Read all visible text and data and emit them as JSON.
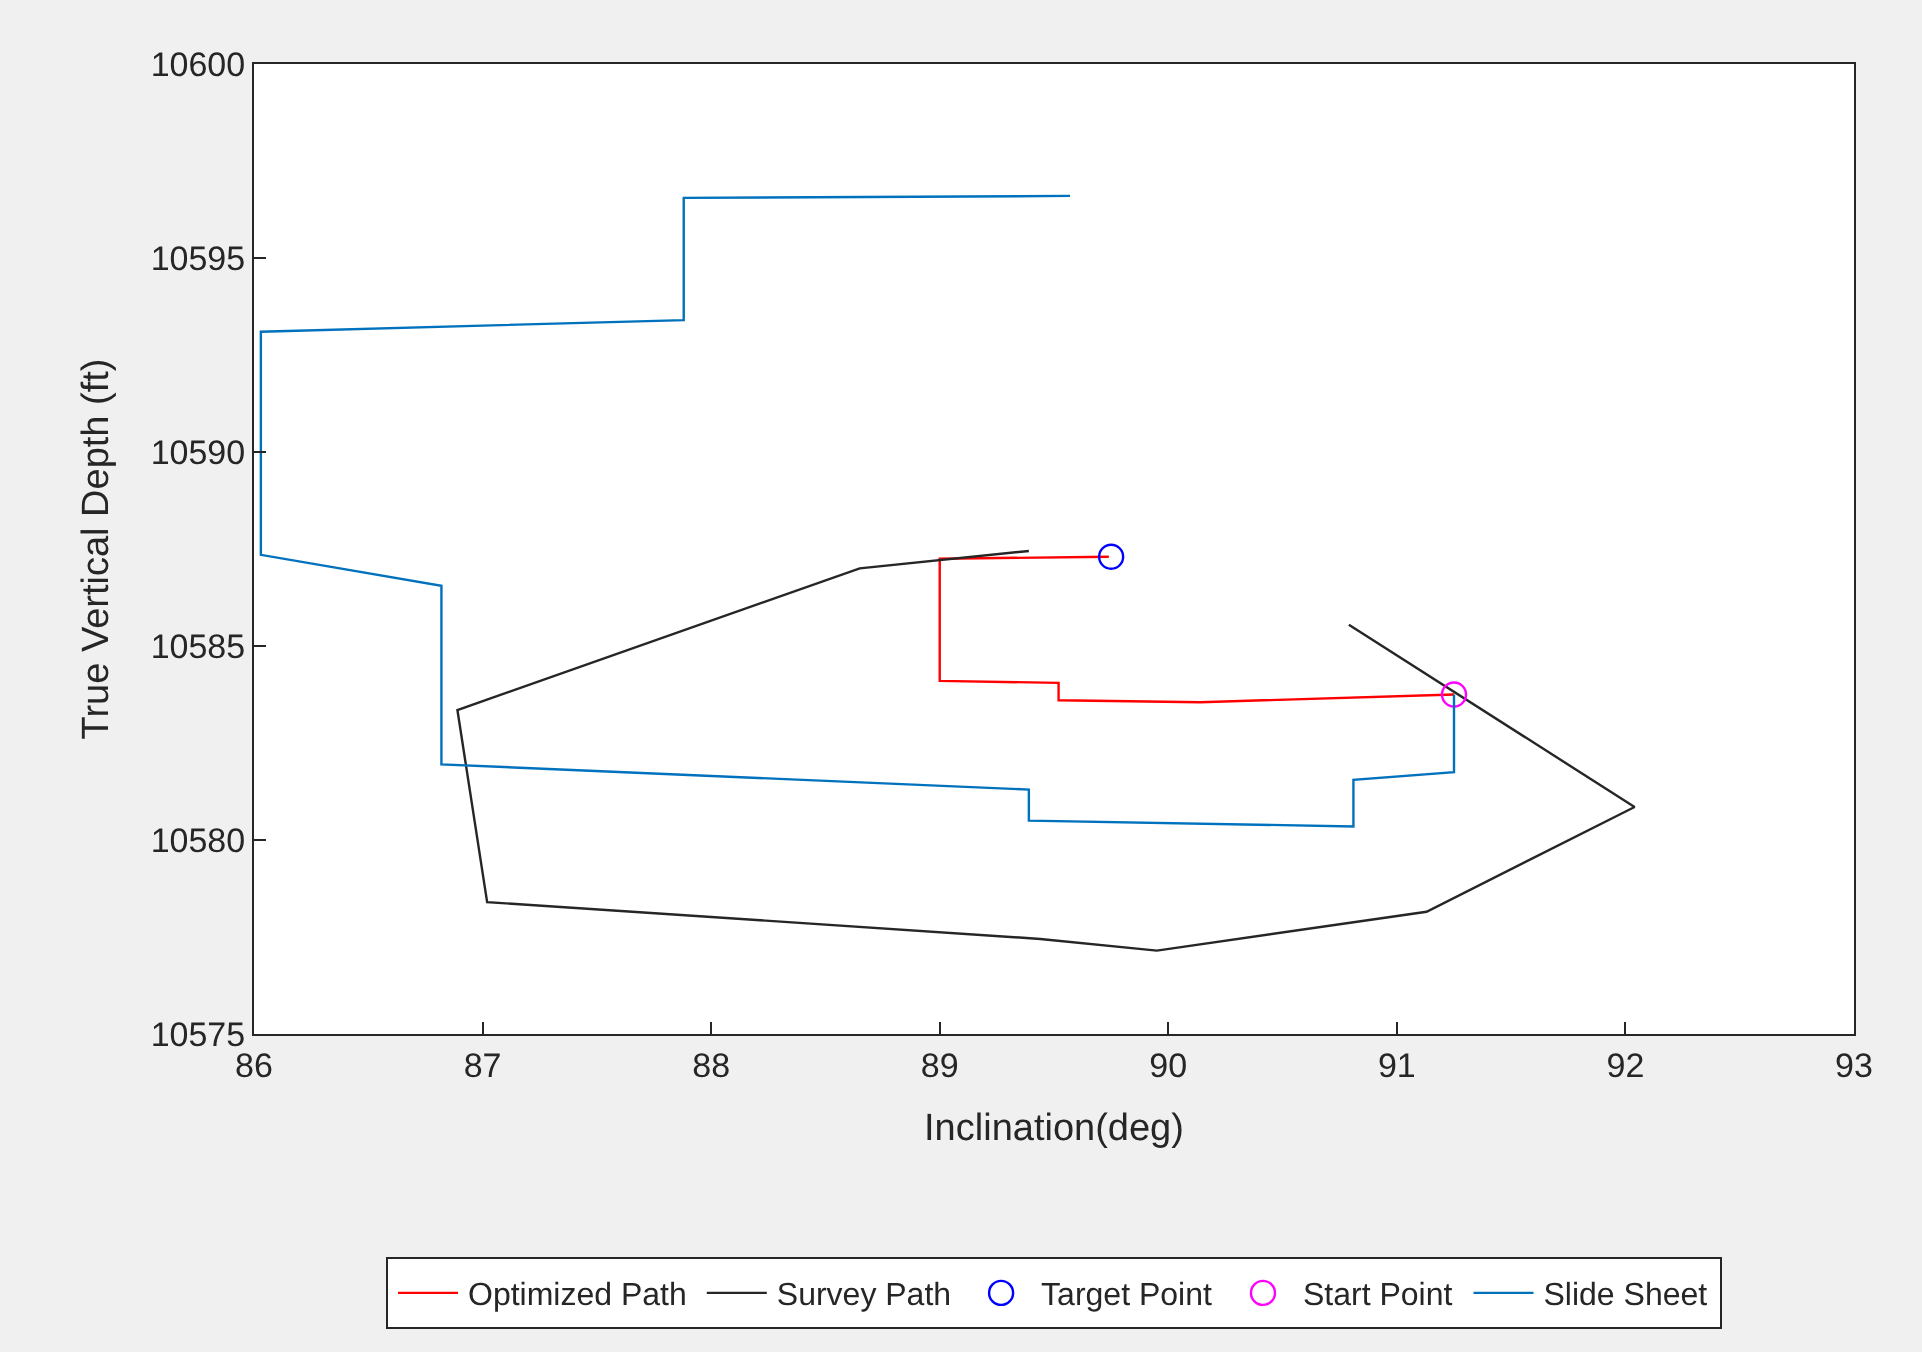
{
  "chart_data": {
    "type": "line",
    "xlabel": "Inclination(deg)",
    "ylabel": "True Vertical Depth (ft)",
    "xlim": [
      86,
      93
    ],
    "xticks": [
      86,
      87,
      88,
      89,
      90,
      91,
      92,
      93
    ],
    "ylim": [
      10575,
      10600
    ],
    "yticks": [
      10575,
      10580,
      10585,
      10590,
      10595,
      10600
    ],
    "legend": "bottom",
    "series": [
      {
        "name": "Optimized Path",
        "color": "#ff0000",
        "marker": "none",
        "x": [
          89.74,
          89.0,
          89.0,
          89.52,
          89.52,
          90.14,
          91.25
        ],
        "values": [
          10587.3,
          10587.25,
          10584.1,
          10584.05,
          10583.6,
          10583.55,
          10583.75
        ]
      },
      {
        "name": "Survey Path",
        "color": "#262626",
        "marker": "none",
        "x": [
          89.39,
          88.65,
          86.89,
          87.02,
          89.44,
          89.95,
          91.13,
          92.04,
          90.79
        ],
        "values": [
          10587.45,
          10587.0,
          10583.35,
          10578.4,
          10577.45,
          10577.15,
          10578.15,
          10580.85,
          10585.55
        ]
      },
      {
        "name": "Target Point",
        "type": "scatter",
        "color": "#0000ff",
        "marker": "circle",
        "x": [
          89.75
        ],
        "values": [
          10587.3
        ]
      },
      {
        "name": "Start Point",
        "type": "scatter",
        "color": "#ff00ff",
        "marker": "circle",
        "x": [
          91.25
        ],
        "values": [
          10583.75
        ]
      },
      {
        "name": "Slide Sheet",
        "color": "#0072bd",
        "marker": "none",
        "x": [
          89.57,
          87.88,
          87.88,
          86.03,
          86.03,
          86.82,
          86.82,
          89.39,
          89.39,
          90.81,
          90.81,
          91.25,
          91.25
        ],
        "values": [
          10596.6,
          10596.55,
          10593.4,
          10593.1,
          10587.35,
          10586.55,
          10581.95,
          10581.3,
          10580.5,
          10580.35,
          10581.55,
          10581.75,
          10583.75
        ]
      }
    ]
  }
}
